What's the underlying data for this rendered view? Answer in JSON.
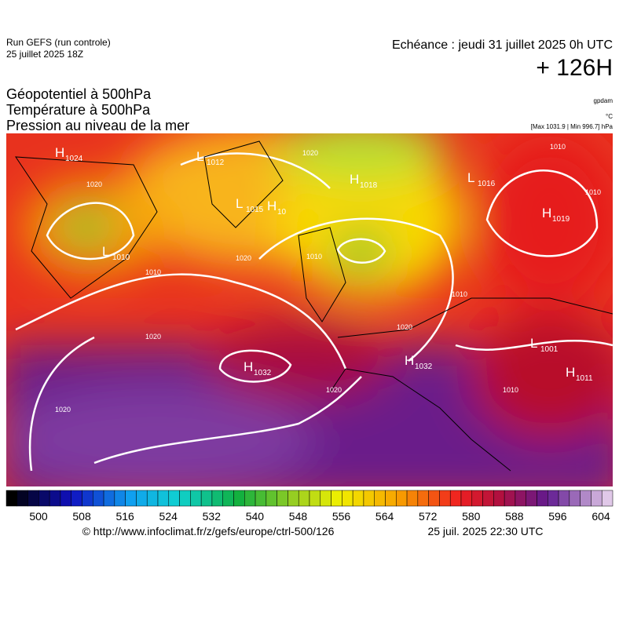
{
  "header": {
    "run": "Run GEFS (run controle)",
    "run_date": "25 juillet 2025 18Z",
    "echeance": "Echéance : jeudi 31 juillet 2025 0h UTC",
    "lead": "+ 126H"
  },
  "titles": [
    "Géopotentiel à 500hPa",
    "Température à 500hPa",
    "Pression au niveau de la mer"
  ],
  "units": {
    "geopotential": "gpdam",
    "temperature": "°C",
    "pressure": "[Max 1031.9 | Min 996.7] hPa"
  },
  "centers": [
    {
      "letter": "H",
      "value": "1024"
    },
    {
      "letter": "L",
      "value": "1012"
    },
    {
      "letter": "L",
      "value": "1015"
    },
    {
      "letter": "H",
      "value": "10"
    },
    {
      "letter": "H",
      "value": "1018"
    },
    {
      "letter": "L",
      "value": "1016"
    },
    {
      "letter": "H",
      "value": "1019"
    },
    {
      "letter": "L",
      "value": "1010"
    },
    {
      "letter": "H",
      "value": "1032"
    },
    {
      "letter": "H",
      "value": "1032"
    },
    {
      "letter": "L",
      "value": "1001"
    },
    {
      "letter": "H",
      "value": "1011"
    }
  ],
  "isobar_labels": [
    "1020",
    "1010",
    "1020",
    "1010",
    "1020",
    "1020",
    "1010",
    "1010",
    "1020",
    "1020",
    "1020",
    "1010",
    "1010"
  ],
  "colorbar": {
    "ticks": [
      500,
      508,
      516,
      524,
      532,
      540,
      548,
      556,
      564,
      572,
      580,
      588,
      596,
      604
    ]
  },
  "footer": {
    "source": "© http://www.infoclimat.fr/z/gefs/europe/ctrl-500/126",
    "generated": "25 juil. 2025 22:30 UTC"
  }
}
